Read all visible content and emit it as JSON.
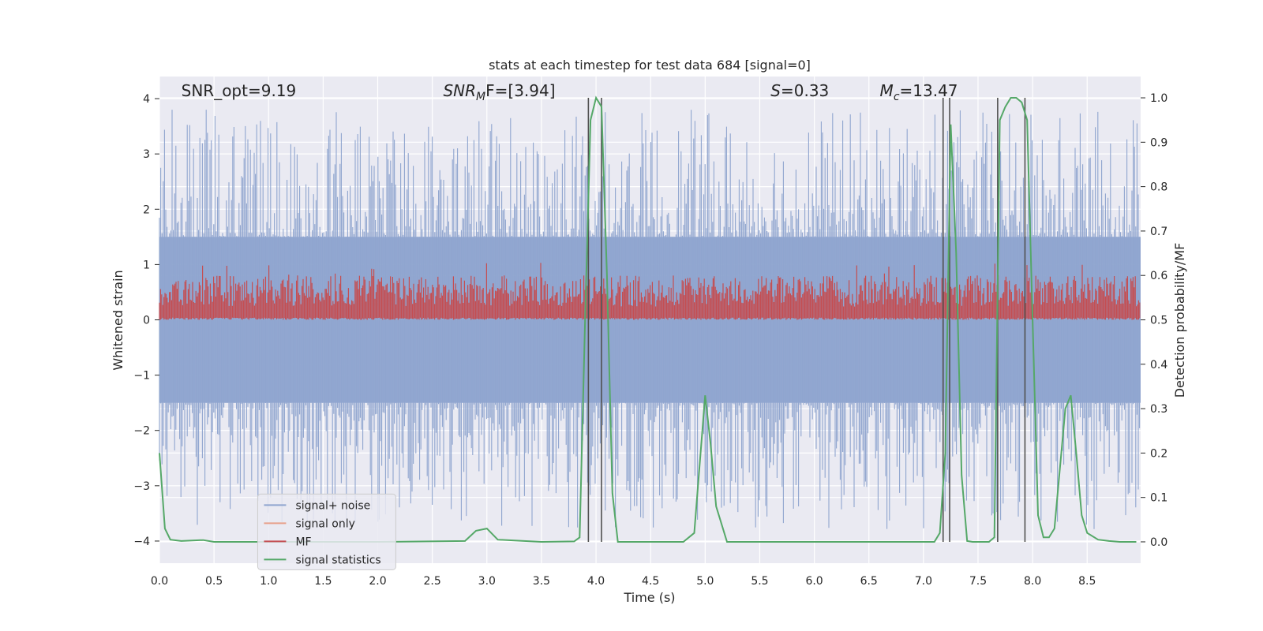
{
  "chart_data": {
    "type": "line",
    "title": "stats at each timestep for test data 684 [signal=0]",
    "xlabel": "Time (s)",
    "ylabel": "Whitened strain",
    "y2label": "Detection probability/MF",
    "xlim": [
      0.0,
      8.99
    ],
    "ylim": [
      -4.4,
      4.4
    ],
    "y2lim": [
      -0.048,
      1.048
    ],
    "xticks": [
      0.0,
      0.5,
      1.0,
      1.5,
      2.0,
      2.5,
      3.0,
      3.5,
      4.0,
      4.5,
      5.0,
      5.5,
      6.0,
      6.5,
      7.0,
      7.5,
      8.0,
      8.5
    ],
    "xtick_labels": [
      "0.0",
      "0.5",
      "1.0",
      "1.5",
      "2.0",
      "2.5",
      "3.0",
      "3.5",
      "4.0",
      "4.5",
      "5.0",
      "5.5",
      "6.0",
      "6.5",
      "7.0",
      "7.5",
      "8.0",
      "8.5"
    ],
    "yticks": [
      -4,
      -3,
      -2,
      -1,
      0,
      1,
      2,
      3,
      4
    ],
    "ytick_labels": [
      "−4",
      "−3",
      "−2",
      "−1",
      "0",
      "1",
      "2",
      "3",
      "4"
    ],
    "y2ticks": [
      0.0,
      0.1,
      0.2,
      0.3,
      0.4,
      0.5,
      0.6,
      0.7,
      0.8,
      0.9,
      1.0
    ],
    "y2tick_labels": [
      "0.0",
      "0.1",
      "0.2",
      "0.3",
      "0.4",
      "0.5",
      "0.6",
      "0.7",
      "0.8",
      "0.9",
      "1.0"
    ],
    "annotations": [
      {
        "text": "SNR_opt=9.19",
        "italic_prefix": "",
        "sub": "",
        "rest": "SNR_opt=9.19",
        "x": 0.2,
        "y": 4.1
      },
      {
        "text": "SNR_MF=[3.94]",
        "italic_prefix": "SNR",
        "sub": "M",
        "rest": "F=[3.94]",
        "x": 2.6,
        "y": 4.1
      },
      {
        "text": "S=0.33",
        "italic_prefix": "S",
        "sub": "",
        "rest": "=0.33",
        "x": 5.6,
        "y": 4.1
      },
      {
        "text": "M_c=13.47",
        "italic_prefix": "M",
        "sub": "c",
        "rest": "=13.47",
        "x": 6.6,
        "y": 4.1
      }
    ],
    "series": [
      {
        "name": "signal+ noise",
        "color": "#8fa5cf",
        "axis": "left",
        "kind": "noise",
        "amplitude": 1.5
      },
      {
        "name": "signal only",
        "color": "#e8a08a",
        "axis": "left",
        "kind": "flat",
        "values": [
          0.0
        ]
      },
      {
        "name": "MF",
        "color": "#c44e52",
        "axis": "right",
        "kind": "band",
        "range": [
          0.5,
          0.6
        ]
      },
      {
        "name": "signal statistics",
        "color": "#55a868",
        "axis": "right",
        "kind": "line",
        "x": [
          0.0,
          0.05,
          0.1,
          0.2,
          0.3,
          0.4,
          0.5,
          1.0,
          2.0,
          2.8,
          2.9,
          3.0,
          3.1,
          3.5,
          3.8,
          3.85,
          3.9,
          3.95,
          4.0,
          4.05,
          4.1,
          4.15,
          4.2,
          4.8,
          4.9,
          5.0,
          5.05,
          5.1,
          5.2,
          6.0,
          7.1,
          7.15,
          7.2,
          7.25,
          7.3,
          7.35,
          7.4,
          7.45,
          7.6,
          7.65,
          7.7,
          7.75,
          7.8,
          7.85,
          7.9,
          7.95,
          8.0,
          8.05,
          8.1,
          8.15,
          8.2,
          8.3,
          8.35,
          8.4,
          8.45,
          8.5,
          8.6,
          8.7,
          8.8,
          8.95
        ],
        "y": [
          0.2,
          0.03,
          0.005,
          0.002,
          0.003,
          0.004,
          0.0,
          0.0,
          0.0,
          0.002,
          0.025,
          0.03,
          0.005,
          0.0,
          0.001,
          0.01,
          0.5,
          0.95,
          1.0,
          0.98,
          0.6,
          0.11,
          0.0,
          0.0,
          0.02,
          0.33,
          0.22,
          0.08,
          0.0,
          0.0,
          0.0,
          0.02,
          0.2,
          0.94,
          0.65,
          0.15,
          0.002,
          0.0,
          0.0,
          0.01,
          0.95,
          0.98,
          1.0,
          1.0,
          0.99,
          0.95,
          0.5,
          0.06,
          0.01,
          0.01,
          0.03,
          0.3,
          0.33,
          0.2,
          0.06,
          0.02,
          0.005,
          0.002,
          0.0,
          0.0
        ]
      }
    ],
    "event_lines": [
      3.93,
      4.05,
      7.18,
      7.24,
      7.68,
      7.93
    ],
    "legend": {
      "placement": "lower-left",
      "entries": [
        "signal+ noise",
        "signal only",
        "MF",
        "signal statistics"
      ]
    },
    "grid": true,
    "colors": {
      "background": "#eaeaf2",
      "grid": "#ffffff",
      "event_line": "#505050"
    }
  }
}
